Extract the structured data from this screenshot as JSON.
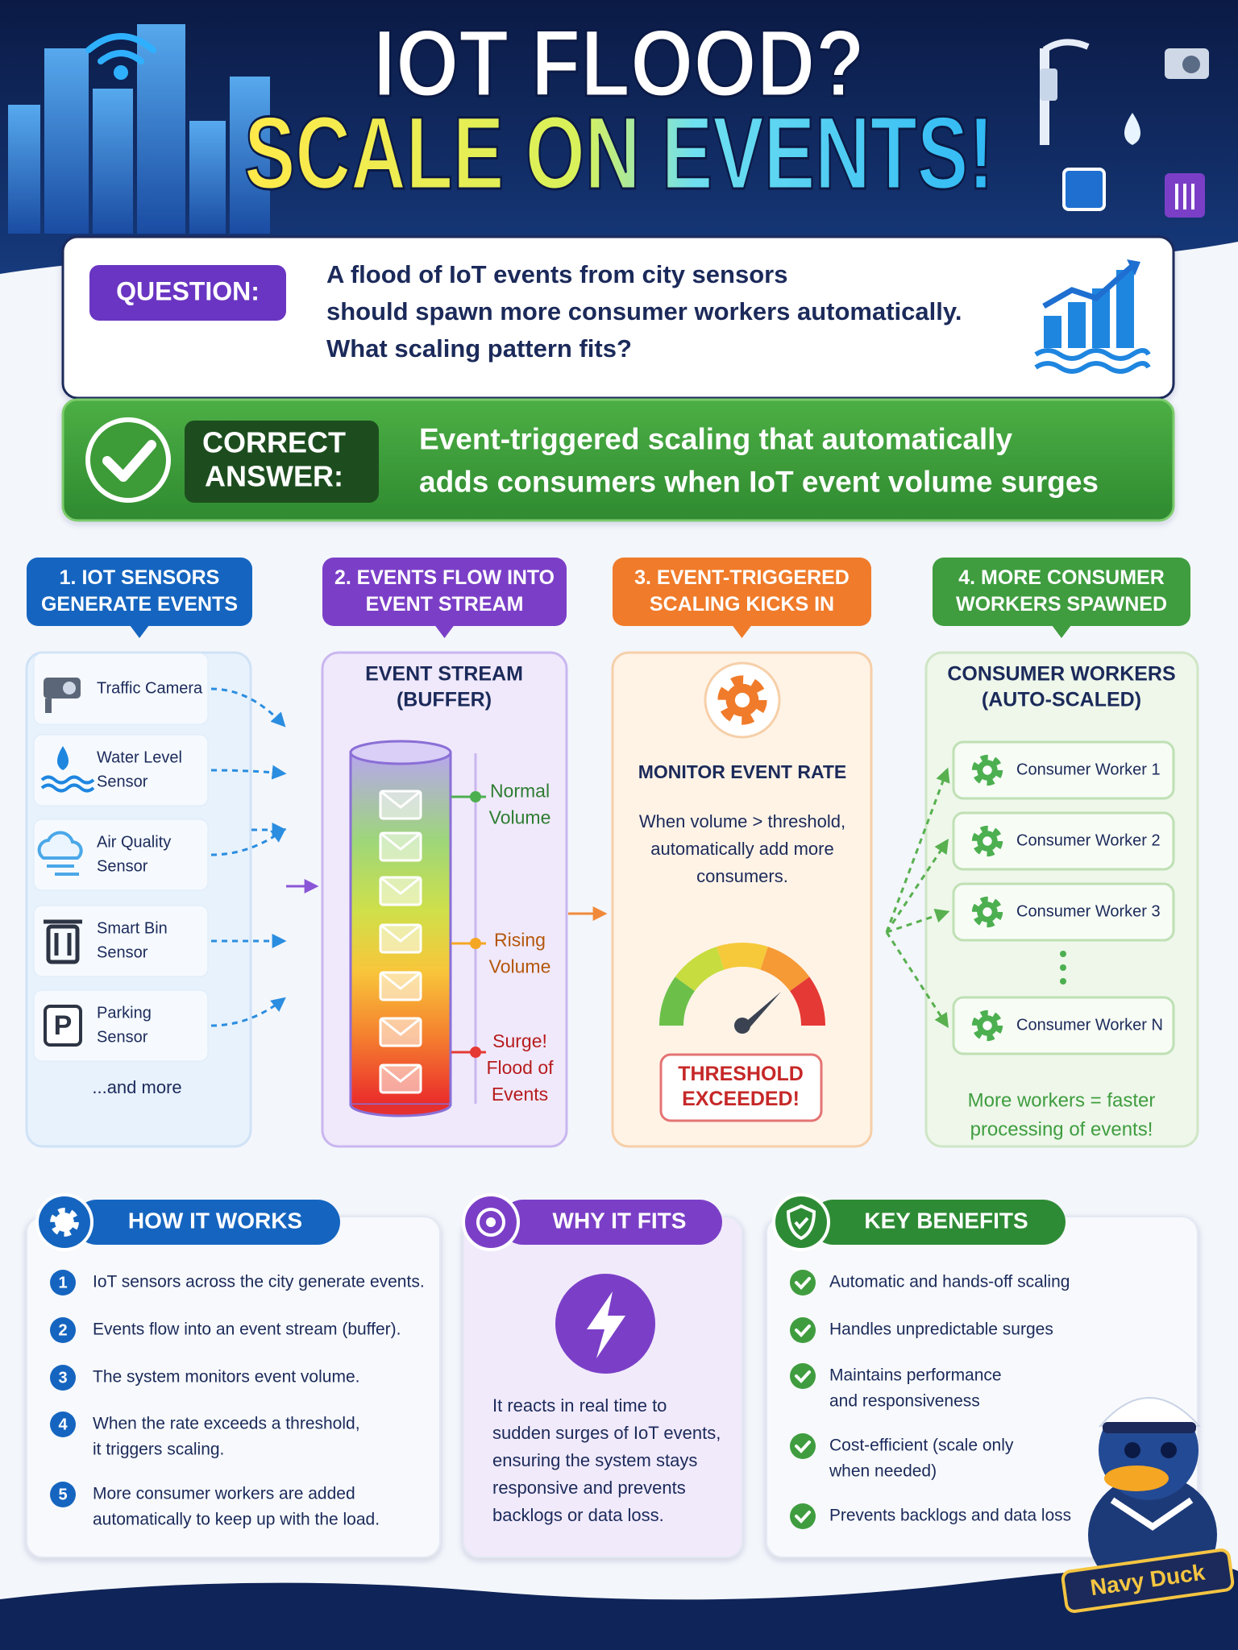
{
  "header": {
    "title_line1": "IOT FLOOD?",
    "title_line2": "SCALE ON EVENTS!"
  },
  "question": {
    "label": "QUESTION:",
    "lines": [
      "A flood of IoT events from city sensors",
      "should spawn more consumer workers automatically.",
      "What scaling pattern fits?"
    ]
  },
  "answer": {
    "label_lines": [
      "CORRECT",
      "ANSWER:"
    ],
    "lines": [
      "Event-triggered scaling that automatically",
      "adds consumers when IoT event volume surges"
    ]
  },
  "steps": [
    {
      "lines": [
        "1. IOT SENSORS",
        "GENERATE EVENTS"
      ]
    },
    {
      "lines": [
        "2. EVENTS FLOW INTO",
        "EVENT STREAM"
      ]
    },
    {
      "lines": [
        "3. EVENT-TRIGGERED",
        "SCALING KICKS IN"
      ]
    },
    {
      "lines": [
        "4. MORE CONSUMER",
        "WORKERS SPAWNED"
      ]
    }
  ],
  "sensors": {
    "items": [
      {
        "lines": [
          "Traffic Camera"
        ]
      },
      {
        "lines": [
          "Water Level",
          "Sensor"
        ]
      },
      {
        "lines": [
          "Air Quality",
          "Sensor"
        ]
      },
      {
        "lines": [
          "Smart Bin",
          "Sensor"
        ]
      },
      {
        "lines": [
          "Parking",
          "Sensor"
        ]
      }
    ],
    "more": "...and more"
  },
  "stream": {
    "title_lines": [
      "EVENT STREAM",
      "(BUFFER)"
    ],
    "levels": [
      {
        "lines": [
          "Normal",
          "Volume"
        ]
      },
      {
        "lines": [
          "Rising",
          "Volume"
        ]
      },
      {
        "lines": [
          "Surge!",
          "Flood of",
          "Events"
        ]
      }
    ]
  },
  "monitor": {
    "title": "MONITOR EVENT RATE",
    "lines": [
      "When volume > threshold,",
      "automatically add more",
      "consumers."
    ],
    "alert_lines": [
      "THRESHOLD",
      "EXCEEDED!"
    ]
  },
  "workers": {
    "title_lines": [
      "CONSUMER WORKERS",
      "(AUTO-SCALED)"
    ],
    "items": [
      "Consumer Worker 1",
      "Consumer Worker 2",
      "Consumer Worker 3",
      "Consumer Worker N"
    ],
    "footer_lines": [
      "More workers = faster",
      "processing of events!"
    ]
  },
  "how": {
    "title": "HOW IT WORKS",
    "items": [
      {
        "number": 1,
        "lines": [
          "IoT sensors across the city generate events."
        ]
      },
      {
        "number": 2,
        "lines": [
          "Events flow into an event stream (buffer)."
        ]
      },
      {
        "number": 3,
        "lines": [
          "The system monitors event volume."
        ]
      },
      {
        "number": 4,
        "lines": [
          "When the rate exceeds a threshold,",
          "it triggers scaling."
        ]
      },
      {
        "number": 5,
        "lines": [
          "More consumer workers are added",
          "automatically to keep up with the load."
        ]
      }
    ]
  },
  "why": {
    "title": "WHY IT FITS",
    "lines": [
      "It reacts in real time to",
      "sudden surges of IoT events,",
      "ensuring the system stays",
      "responsive and prevents",
      "backlogs or data loss."
    ]
  },
  "benefits": {
    "title": "KEY BENEFITS",
    "items": [
      {
        "lines": [
          "Automatic and hands-off scaling"
        ]
      },
      {
        "lines": [
          "Handles unpredictable surges"
        ]
      },
      {
        "lines": [
          "Maintains performance",
          "and responsiveness"
        ]
      },
      {
        "lines": [
          "Cost-efficient (scale only",
          "when needed)"
        ]
      },
      {
        "lines": [
          "Prevents backlogs and data loss"
        ]
      }
    ]
  },
  "mascot": {
    "label": "Navy Duck"
  }
}
